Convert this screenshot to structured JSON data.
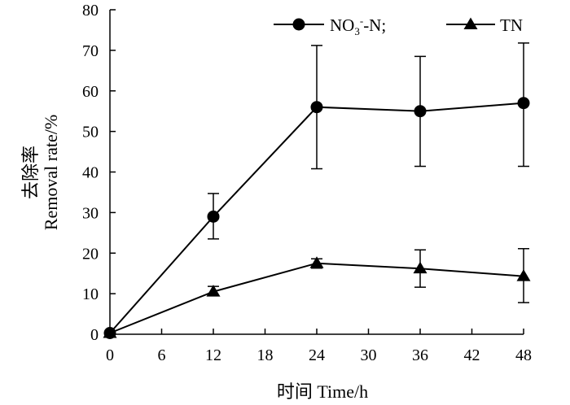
{
  "chart_data": {
    "type": "line",
    "title": "",
    "xlabel": "时间 Time/h",
    "ylabel_line1": "去除率",
    "ylabel_line2": "Removal rate/%",
    "xlim": [
      0,
      48
    ],
    "ylim": [
      0,
      80
    ],
    "x_ticks": [
      "0",
      "6",
      "12",
      "18",
      "24",
      "30",
      "36",
      "42",
      "48"
    ],
    "y_ticks": [
      "0",
      "10",
      "20",
      "30",
      "40",
      "50",
      "60",
      "70",
      "80"
    ],
    "grid": false,
    "legend_position": "top-right",
    "x": [
      0,
      12,
      24,
      36,
      48
    ],
    "series": [
      {
        "name_main": "NO",
        "name_sub": "3",
        "name_sup": "-",
        "name_rest": "-N;",
        "marker": "circle",
        "values": [
          0.3,
          29,
          56,
          55,
          57
        ],
        "error_low": [
          0.3,
          23.5,
          40.8,
          41.4,
          41.4
        ],
        "error_high": [
          0.3,
          34.7,
          71.2,
          68.5,
          71.8
        ]
      },
      {
        "name": "TN",
        "marker": "triangle",
        "values": [
          0.3,
          10.5,
          17.5,
          16.2,
          14.3
        ],
        "error_low": [
          0.3,
          9.5,
          16.3,
          11.6,
          7.8
        ],
        "error_high": [
          0.3,
          11.8,
          18.6,
          20.8,
          21.1
        ]
      }
    ]
  }
}
